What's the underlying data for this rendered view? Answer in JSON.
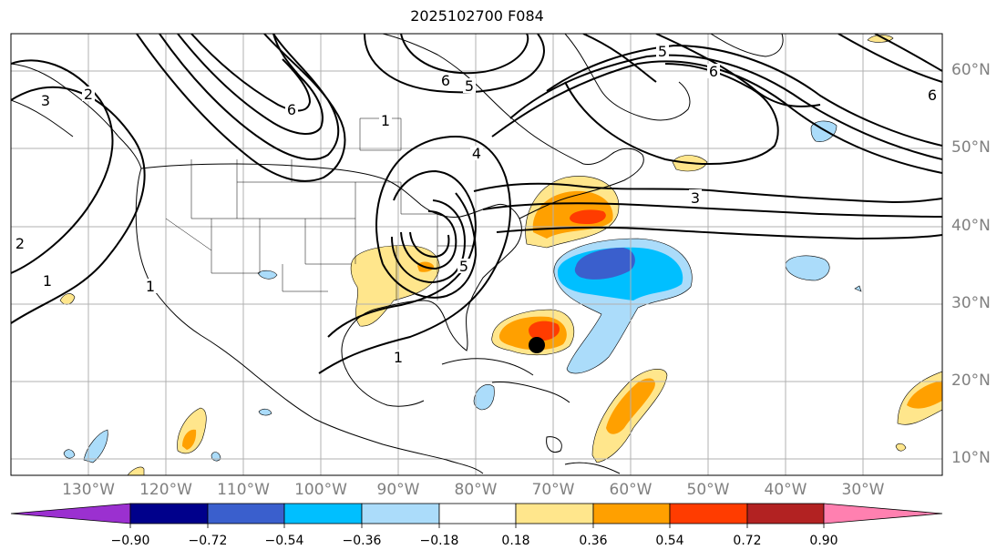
{
  "title": "2025102700 F084",
  "lat_labels": [
    "60°N",
    "50°N",
    "40°N",
    "30°N",
    "20°N",
    "10°N"
  ],
  "lon_labels": [
    "130°W",
    "120°W",
    "110°W",
    "100°W",
    "90°W",
    "80°W",
    "70°W",
    "60°W",
    "50°W",
    "40°W",
    "30°W"
  ],
  "colorbar": {
    "ticks": [
      "−0.90",
      "−0.72",
      "−0.54",
      "−0.36",
      "−0.18",
      "0.18",
      "0.36",
      "0.54",
      "0.72",
      "0.90"
    ],
    "colors": [
      "#9b30d0",
      "#00008b",
      "#3a5fcd",
      "#00bfff",
      "#abdcfa",
      "#ffffff",
      "#ffe68c",
      "#ffa000",
      "#ff3c00",
      "#b22222",
      "#ff80b0"
    ]
  },
  "contour_labels": [
    "1",
    "1",
    "1",
    "1",
    "2",
    "2",
    "3",
    "3",
    "4",
    "5",
    "5",
    "5",
    "6",
    "6",
    "6",
    "6"
  ],
  "map_colors": {
    "land_line": "#000000",
    "grid": "#b0b0b0",
    "pos_light": "#ffe68c",
    "pos_med": "#ffa000",
    "pos_dark": "#ff3c00",
    "neg_light": "#abdcfa",
    "neg_med": "#00bfff",
    "neg_dark": "#3a5fcd"
  },
  "marker": "storm-center-dot"
}
